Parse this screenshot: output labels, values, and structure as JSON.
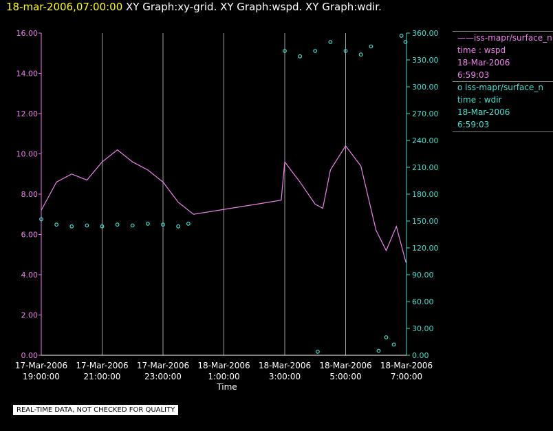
{
  "header": {
    "time": "18-mar-2006,07:00:00",
    "titles": "XY Graph:xy-grid.  XY Graph:wspd.  XY Graph:wdir."
  },
  "legend": [
    {
      "marker": "——",
      "name": "iss-mapr/surface_n",
      "field": "time : wspd",
      "date": "18-Mar-2006",
      "time": "6:59:03",
      "color": "#ee82ee"
    },
    {
      "marker": "o",
      "name": "iss-mapr/surface_n",
      "field": "time : wdir",
      "date": "18-Mar-2006",
      "time": "6:59:03",
      "color": "#40e0d0"
    }
  ],
  "notice": "REAL-TIME DATA, NOT CHECKED FOR QUALITY",
  "chart_data": {
    "type": "line",
    "xlabel": "Time",
    "x_ticks": [
      {
        "date": "17-Mar-2006",
        "time": "19:00:00"
      },
      {
        "date": "17-Mar-2006",
        "time": "21:00:00"
      },
      {
        "date": "17-Mar-2006",
        "time": "23:00:00"
      },
      {
        "date": "18-Mar-2006",
        "time": "1:00:00"
      },
      {
        "date": "18-Mar-2006",
        "time": "3:00:00"
      },
      {
        "date": "18-Mar-2006",
        "time": "5:00:00"
      },
      {
        "date": "18-Mar-2006",
        "time": "7:00:00"
      }
    ],
    "xlim": [
      "17-Mar-2006 19:00:00",
      "18-Mar-2006 7:00:00"
    ],
    "y_left": {
      "ylim": [
        0,
        16
      ],
      "ticks": [
        "0.00",
        "2.00",
        "4.00",
        "6.00",
        "8.00",
        "10.00",
        "12.00",
        "14.00",
        "16.00"
      ],
      "color": "#ee82ee"
    },
    "y_right": {
      "ylim": [
        0,
        360
      ],
      "ticks": [
        "0.00",
        "30.00",
        "60.00",
        "90.00",
        "120.00",
        "150.00",
        "180.00",
        "210.00",
        "240.00",
        "270.00",
        "300.00",
        "330.00",
        "360.00"
      ],
      "color": "#40e0d0"
    },
    "grid": "vertical",
    "series": [
      {
        "field": "wspd",
        "axis": "left",
        "style": "line",
        "color": "#ee82ee",
        "points": [
          [
            "17-Mar-2006 19:00",
            "7.2"
          ],
          [
            "17-Mar-2006 19:30",
            "8.6"
          ],
          [
            "17-Mar-2006 20:00",
            "9.0"
          ],
          [
            "17-Mar-2006 20:30",
            "8.7"
          ],
          [
            "17-Mar-2006 21:00",
            "9.6"
          ],
          [
            "17-Mar-2006 21:30",
            "10.2"
          ],
          [
            "17-Mar-2006 22:00",
            "9.6"
          ],
          [
            "17-Mar-2006 22:30",
            "9.2"
          ],
          [
            "17-Mar-2006 23:00",
            "8.6"
          ],
          [
            "17-Mar-2006 23:30",
            "7.6"
          ],
          [
            "18-Mar-2006 00:00",
            "7.0"
          ],
          [
            "18-Mar-2006 02:53",
            "7.7"
          ],
          [
            "18-Mar-2006 03:00",
            "9.6"
          ],
          [
            "18-Mar-2006 03:30",
            "8.6"
          ],
          [
            "18-Mar-2006 04:00",
            "7.5"
          ],
          [
            "18-Mar-2006 04:15",
            "7.3"
          ],
          [
            "18-Mar-2006 04:30",
            "9.2"
          ],
          [
            "18-Mar-2006 05:00",
            "10.4"
          ],
          [
            "18-Mar-2006 05:30",
            "9.4"
          ],
          [
            "18-Mar-2006 06:00",
            "6.2"
          ],
          [
            "18-Mar-2006 06:20",
            "5.2"
          ],
          [
            "18-Mar-2006 06:40",
            "6.4"
          ],
          [
            "18-Mar-2006 06:59",
            "4.6"
          ]
        ]
      },
      {
        "field": "wdir",
        "axis": "right",
        "style": "markers",
        "marker": "o",
        "color": "#40e0d0",
        "points": [
          [
            "17-Mar-2006 19:00",
            "152"
          ],
          [
            "17-Mar-2006 19:30",
            "146"
          ],
          [
            "17-Mar-2006 20:00",
            "144"
          ],
          [
            "17-Mar-2006 20:30",
            "145"
          ],
          [
            "17-Mar-2006 21:00",
            "144"
          ],
          [
            "17-Mar-2006 21:30",
            "146"
          ],
          [
            "17-Mar-2006 22:00",
            "145"
          ],
          [
            "17-Mar-2006 22:30",
            "147"
          ],
          [
            "17-Mar-2006 23:00",
            "146"
          ],
          [
            "17-Mar-2006 23:30",
            "144"
          ],
          [
            "17-Mar-2006 23:50",
            "147"
          ],
          [
            "18-Mar-2006 03:00",
            "340"
          ],
          [
            "18-Mar-2006 03:30",
            "334"
          ],
          [
            "18-Mar-2006 04:00",
            "340"
          ],
          [
            "18-Mar-2006 04:30",
            "350"
          ],
          [
            "18-Mar-2006 05:00",
            "340"
          ],
          [
            "18-Mar-2006 05:30",
            "336"
          ],
          [
            "18-Mar-2006 05:50",
            "345"
          ],
          [
            "18-Mar-2006 04:05",
            "4"
          ],
          [
            "18-Mar-2006 06:05",
            "5"
          ],
          [
            "18-Mar-2006 06:20",
            "20"
          ],
          [
            "18-Mar-2006 06:35",
            "12"
          ],
          [
            "18-Mar-2006 06:50",
            "357"
          ],
          [
            "18-Mar-2006 06:58",
            "350"
          ]
        ]
      }
    ]
  }
}
